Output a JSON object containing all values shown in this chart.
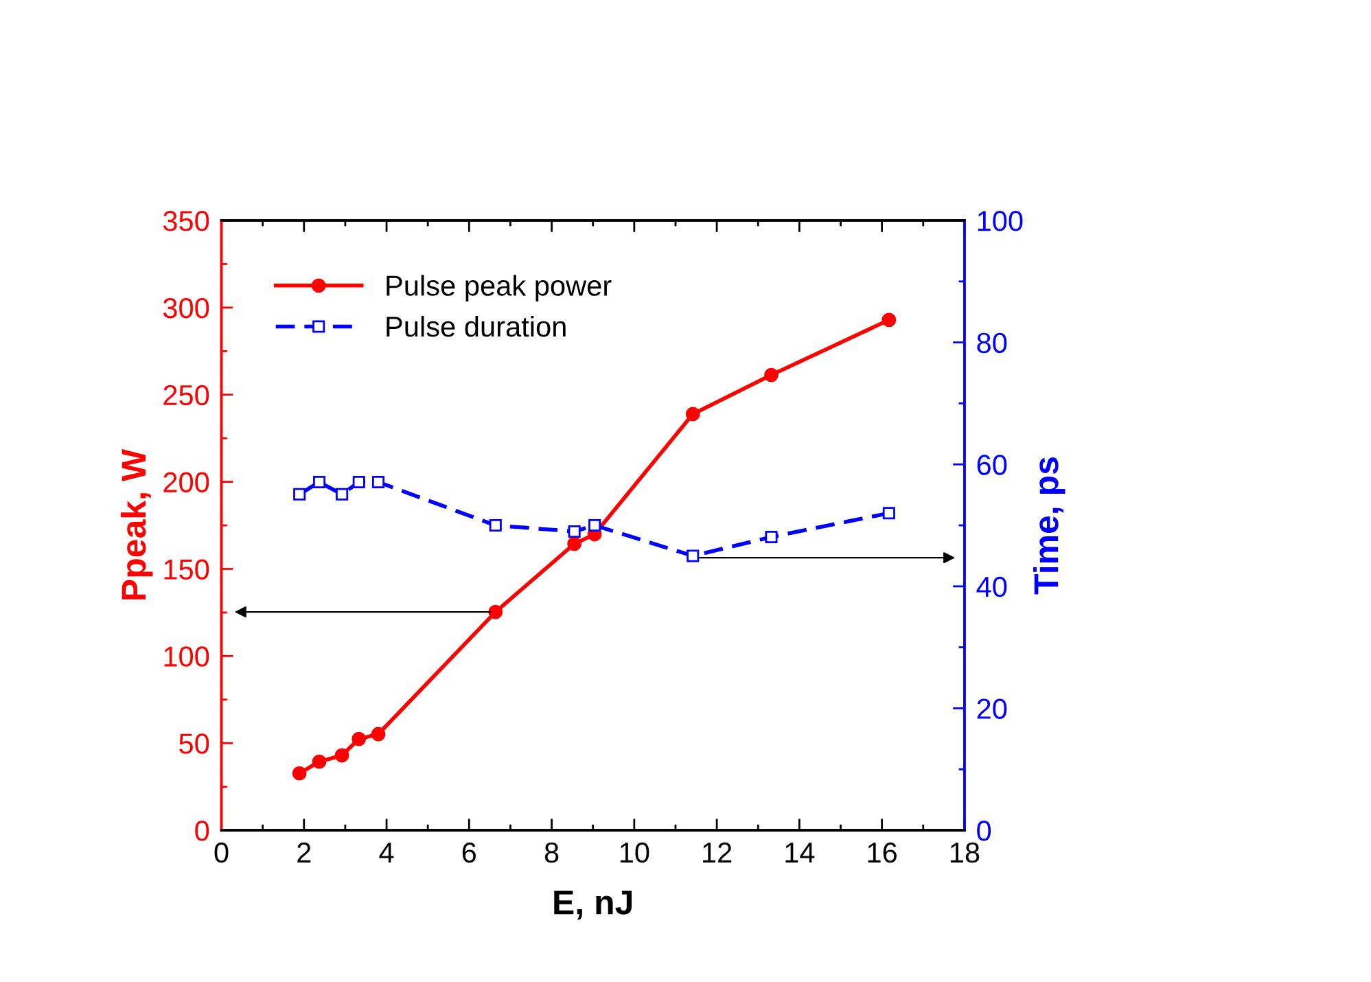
{
  "chart_data": {
    "type": "line",
    "xlabel": "E, nJ",
    "ylabel": "Ppeak, W",
    "y2label": "Time, ps",
    "xlim": [
      0,
      18
    ],
    "xticks": [
      0,
      2,
      4,
      6,
      8,
      10,
      12,
      14,
      16,
      18
    ],
    "ylim": [
      0,
      350
    ],
    "yticks": [
      0,
      50,
      100,
      150,
      200,
      250,
      300,
      350
    ],
    "y2lim": [
      0,
      100
    ],
    "y2ticks": [
      0,
      20,
      40,
      60,
      80,
      100
    ],
    "legend": "top left",
    "grid": false,
    "series": [
      {
        "name": "Pulse peak power",
        "color": "#ff0000",
        "marker": "circle",
        "line_style": "solid",
        "x": [
          1.89,
          2.37,
          2.92,
          3.33,
          3.8,
          6.64,
          8.55,
          9.04,
          11.42,
          13.32,
          16.17
        ],
        "values": [
          32.7,
          39.4,
          43,
          52.4,
          55.2,
          125.3,
          164.4,
          169.9,
          238.9,
          261.3,
          292.9
        ]
      },
      {
        "name": "Pulse duration",
        "color": "#0000ff",
        "marker": "square",
        "line_style": "dashed",
        "axis": "y2",
        "x": [
          1.89,
          2.37,
          2.92,
          3.33,
          3.8,
          6.64,
          8.55,
          9.04,
          11.42,
          13.32,
          16.17
        ],
        "values": [
          55.1,
          57.1,
          55.1,
          57.1,
          57.1,
          50.0,
          49.0,
          50.0,
          45.0,
          48.1,
          52.0
        ]
      }
    ]
  }
}
